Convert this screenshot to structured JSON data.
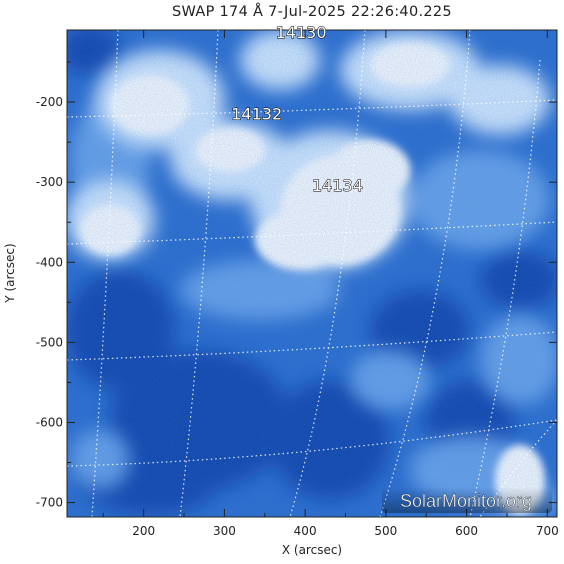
{
  "title": "SWAP 174 Å  7-Jul-2025 22:26:40.225",
  "x_axis": {
    "label": "X (arcsec)",
    "ticks": [
      "200",
      "300",
      "400",
      "500",
      "600",
      "700"
    ],
    "tick_values": [
      200,
      300,
      400,
      500,
      600,
      700
    ],
    "range": [
      105,
      712
    ]
  },
  "y_axis": {
    "label": "Y (arcsec)",
    "ticks": [
      "-200",
      "-300",
      "-400",
      "-500",
      "-600",
      "-700"
    ],
    "tick_values": [
      -200,
      -300,
      -400,
      -500,
      -600,
      -700
    ],
    "range": [
      -718,
      -110
    ]
  },
  "regions": [
    {
      "label": "14130",
      "x": 395,
      "y": -120
    },
    {
      "label": "14132",
      "x": 340,
      "y": -222
    },
    {
      "label": "14134",
      "x": 440,
      "y": -311
    }
  ],
  "watermark": "SolarMonitor.org",
  "colors": {
    "dark": "#0a3ea8",
    "mid": "#2f74d2",
    "light": "#8cc0f4",
    "bright": "#ffffff"
  }
}
